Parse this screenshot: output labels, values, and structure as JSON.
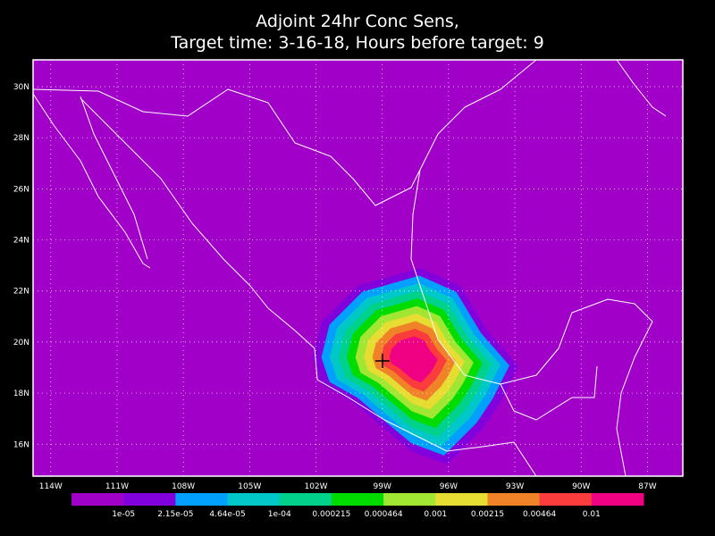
{
  "map": {
    "title": [
      "Adjoint 24hr Conc Sens,",
      "Target time: 3-16-18, Hours before target: 9"
    ],
    "background": "#000000",
    "lon_extent": [
      -114.8,
      -85.4
    ],
    "lat_extent": [
      14.75,
      31.05
    ],
    "lon_ticks": [
      {
        "value": -114,
        "label": "114W"
      },
      {
        "value": -111,
        "label": "111W"
      },
      {
        "value": -108,
        "label": "108W"
      },
      {
        "value": -105,
        "label": "105W"
      },
      {
        "value": -102,
        "label": "102W"
      },
      {
        "value": -99,
        "label": "99W"
      },
      {
        "value": -96,
        "label": "96W"
      },
      {
        "value": -93,
        "label": "93W"
      },
      {
        "value": -90,
        "label": "90W"
      },
      {
        "value": -87,
        "label": "87W"
      }
    ],
    "lat_ticks": [
      {
        "value": 16,
        "label": "16N"
      },
      {
        "value": 18,
        "label": "18N"
      },
      {
        "value": 20,
        "label": "20N"
      },
      {
        "value": 22,
        "label": "22N"
      },
      {
        "value": 24,
        "label": "24N"
      },
      {
        "value": 26,
        "label": "26N"
      },
      {
        "value": 28,
        "label": "28N"
      },
      {
        "value": 30,
        "label": "30N"
      }
    ],
    "grid": true,
    "colorbar": {
      "colors": [
        "#a000c8",
        "#8200dc",
        "#00a0ff",
        "#00c8c8",
        "#00d28c",
        "#00dc00",
        "#a0e632",
        "#e6dc32",
        "#f08228",
        "#fa3c3c",
        "#f00082"
      ],
      "labels": [
        "1e-05",
        "2.15e-05",
        "4.64e-05",
        "1e-04",
        "0.000215",
        "0.000464",
        "0.001",
        "0.00215",
        "0.00464",
        "0.01"
      ]
    }
  }
}
